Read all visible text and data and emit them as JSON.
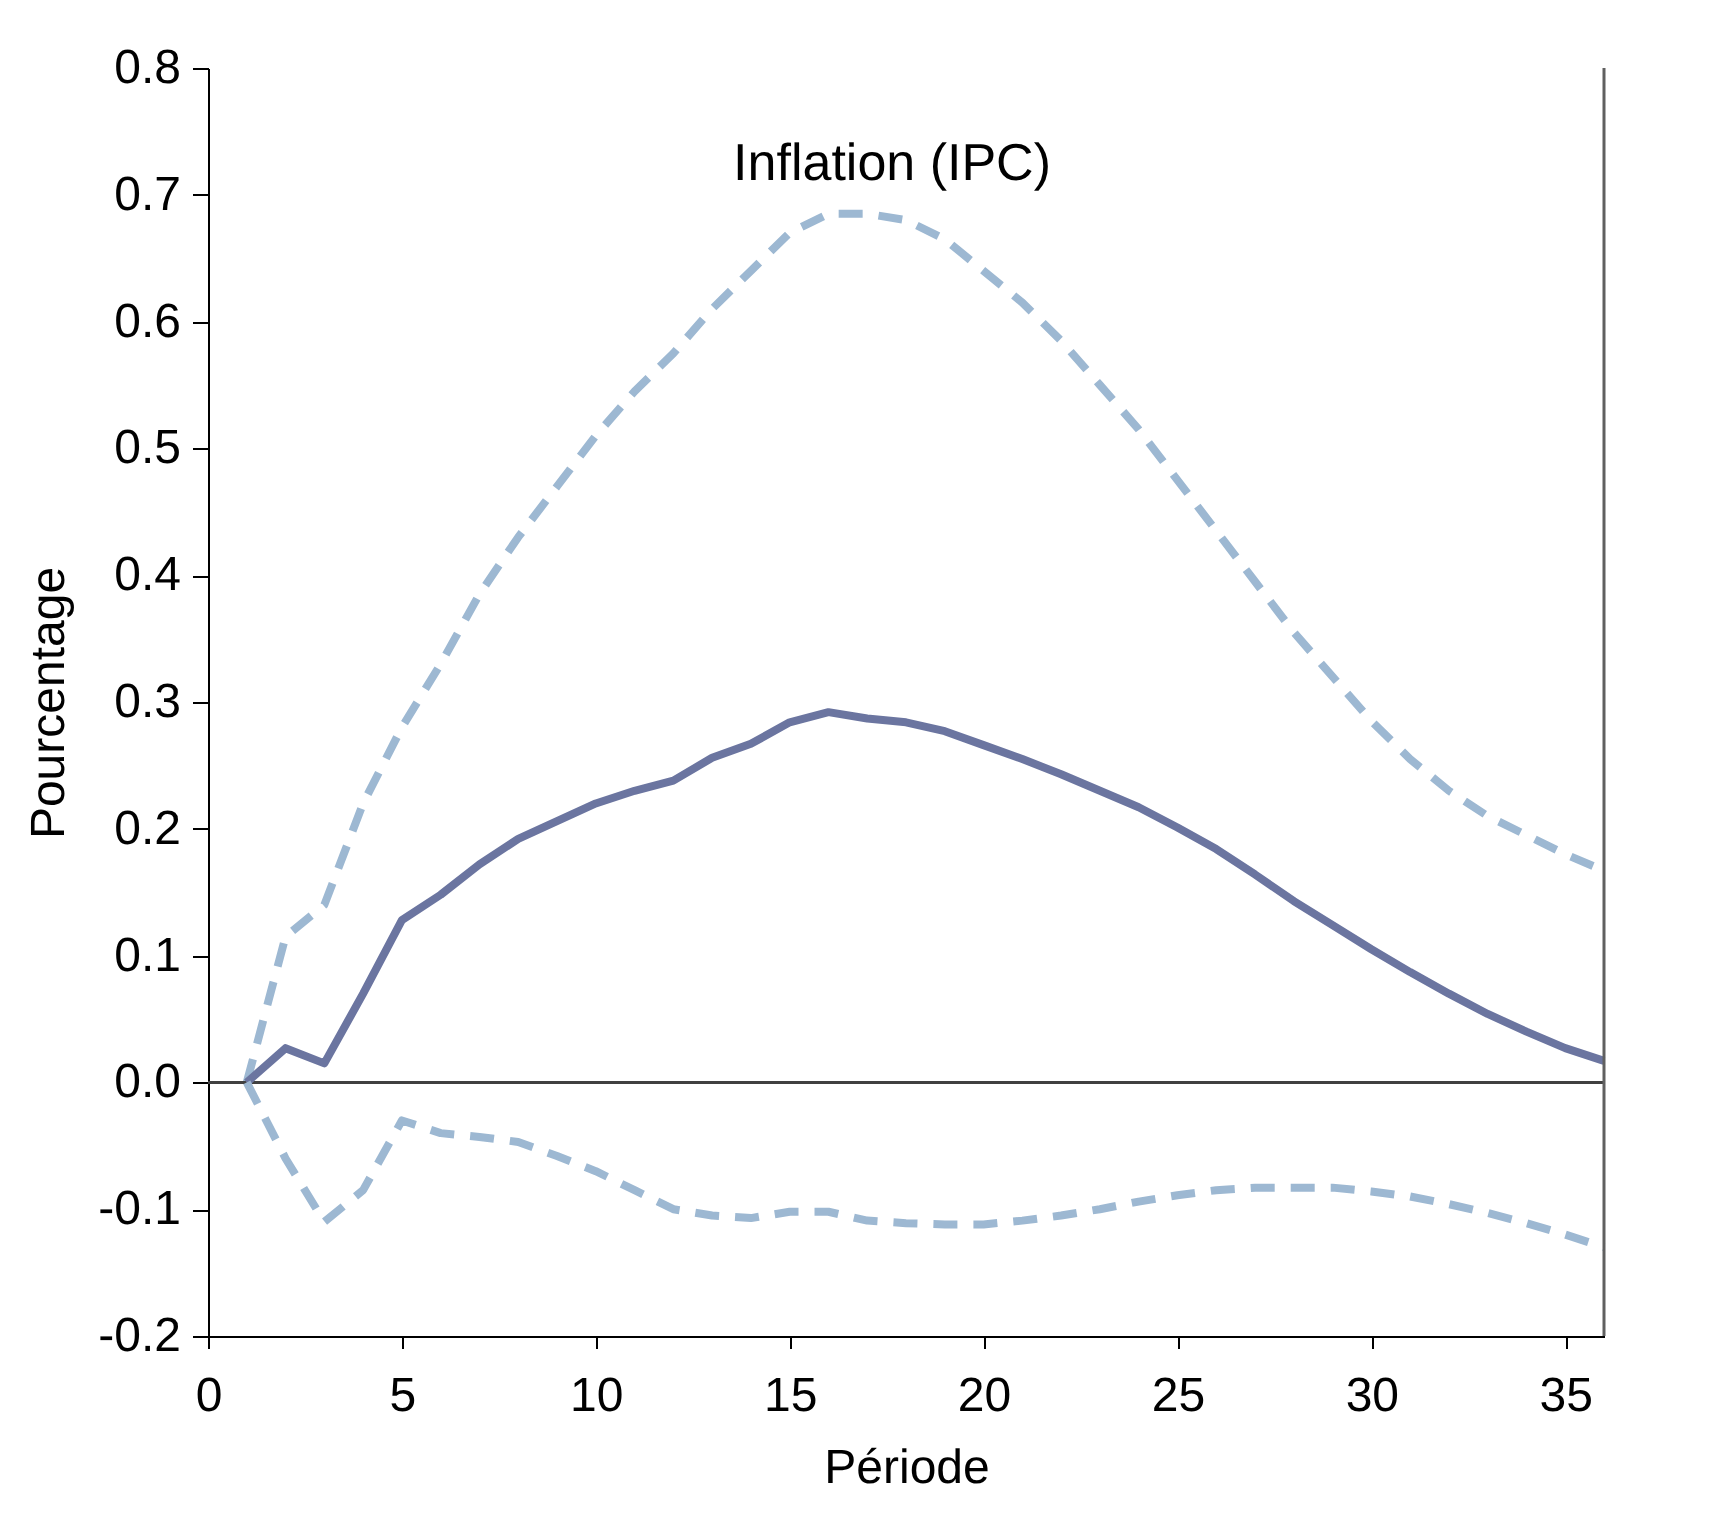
{
  "chart_data": {
    "type": "line",
    "title": "Inflation (IPC)",
    "xlabel": "Période",
    "ylabel": "Pourcentage",
    "x": [
      1,
      2,
      3,
      4,
      5,
      6,
      7,
      8,
      9,
      10,
      11,
      12,
      13,
      14,
      15,
      16,
      17,
      18,
      19,
      20,
      21,
      22,
      23,
      24,
      25,
      26,
      27,
      28,
      29,
      30,
      31,
      32,
      33,
      34,
      35,
      36
    ],
    "series": [
      {
        "color": "#9db8d2",
        "line_style": "dashed",
        "values": [
          0,
          0.115,
          0.14,
          0.22,
          0.28,
          0.33,
          0.385,
          0.43,
          0.47,
          0.51,
          0.545,
          0.575,
          0.61,
          0.64,
          0.67,
          0.685,
          0.685,
          0.68,
          0.665,
          0.64,
          0.615,
          0.585,
          0.55,
          0.515,
          0.475,
          0.435,
          0.395,
          0.355,
          0.32,
          0.285,
          0.255,
          0.23,
          0.21,
          0.195,
          0.18,
          0.167
        ]
      },
      {
        "color": "#6b75a0",
        "line_style": "solid",
        "values": [
          0,
          0.027,
          0.015,
          0.07,
          0.128,
          0.148,
          0.172,
          0.192,
          0.206,
          0.22,
          0.23,
          0.238,
          0.256,
          0.267,
          0.284,
          0.292,
          0.287,
          0.284,
          0.277,
          0.266,
          0.255,
          0.243,
          0.23,
          0.217,
          0.201,
          0.184,
          0.164,
          0.143,
          0.124,
          0.105,
          0.087,
          0.07,
          0.054,
          0.04,
          0.027,
          0.017
        ]
      },
      {
        "color": "#9db8d2",
        "line_style": "dashed",
        "values": [
          0,
          -0.06,
          -0.11,
          -0.085,
          -0.03,
          -0.04,
          -0.043,
          -0.047,
          -0.058,
          -0.07,
          -0.085,
          -0.1,
          -0.105,
          -0.107,
          -0.102,
          -0.102,
          -0.109,
          -0.111,
          -0.112,
          -0.112,
          -0.109,
          -0.105,
          -0.1,
          -0.094,
          -0.089,
          -0.085,
          -0.083,
          -0.083,
          -0.083,
          -0.086,
          -0.09,
          -0.096,
          -0.103,
          -0.111,
          -0.12,
          -0.13
        ]
      }
    ],
    "xlim": [
      0,
      36
    ],
    "xticks": [
      0,
      5,
      10,
      15,
      20,
      25,
      30,
      35
    ],
    "ylim": [
      -0.2,
      0.8
    ],
    "yticks": [
      -0.2,
      -0.1,
      {
        "value": 0,
        "label": "0.0"
      },
      0.1,
      0.2,
      0.3,
      0.4,
      0.5,
      0.6,
      0.7,
      0.8
    ],
    "ref_lines": [
      {
        "axis": "y",
        "value": 0,
        "color": "#404040"
      }
    ],
    "grid": false,
    "marker": "none"
  }
}
